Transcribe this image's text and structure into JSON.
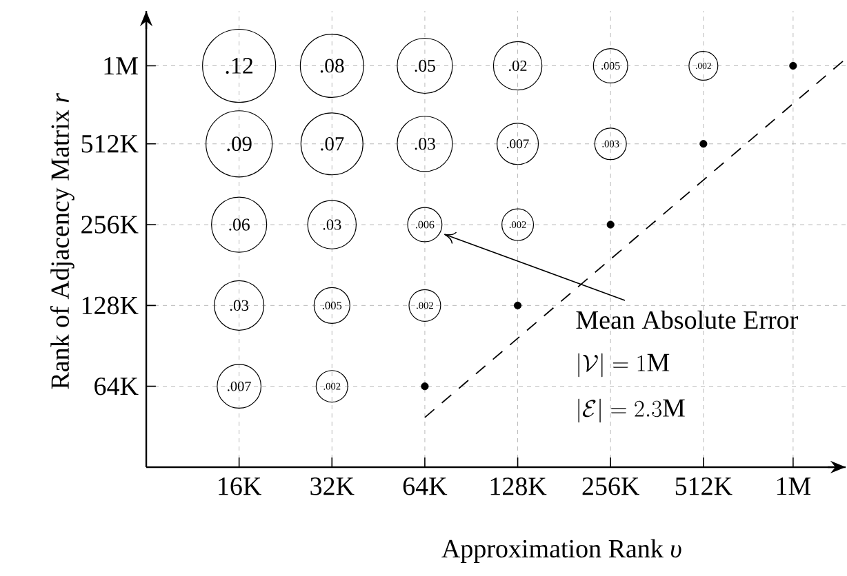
{
  "chart_data": {
    "type": "bubble",
    "xlabel": "Approximation Rank *υ*",
    "ylabel": "Rank of Adjacency Matrix *r*",
    "log": "xy",
    "grid": true,
    "xlim": [
      8000,
      1480000
    ],
    "ylim": [
      32000,
      1600000
    ],
    "xticks": [
      {
        "value": 16000,
        "label": "16K"
      },
      {
        "value": 32000,
        "label": "32K"
      },
      {
        "value": 64000,
        "label": "64K"
      },
      {
        "value": 128000,
        "label": "128K"
      },
      {
        "value": 256000,
        "label": "256K"
      },
      {
        "value": 512000,
        "label": "512K"
      },
      {
        "value": 1000000,
        "label": "1M"
      }
    ],
    "yticks": [
      {
        "value": 64000,
        "label": "64K"
      },
      {
        "value": 128000,
        "label": "128K"
      },
      {
        "value": 256000,
        "label": "256K"
      },
      {
        "value": 512000,
        "label": "512K"
      },
      {
        "value": 1000000,
        "label": "1M"
      }
    ],
    "series": [
      {
        "color": "#000000",
        "x": [
          16000,
          32000,
          64000,
          128000,
          256000,
          512000,
          16000,
          32000,
          64000,
          128000,
          256000,
          16000,
          32000,
          64000,
          128000,
          16000,
          32000,
          64000,
          16000,
          32000
        ],
        "values": [
          1000000,
          1000000,
          1000000,
          1000000,
          1000000,
          1000000,
          512000,
          512000,
          512000,
          512000,
          512000,
          256000,
          256000,
          256000,
          256000,
          128000,
          128000,
          128000,
          64000,
          64000
        ],
        "sizes": [
          1,
          0.75,
          0.57,
          0.44,
          0.22,
          0.156,
          0.82,
          0.72,
          0.57,
          0.32,
          0.187,
          0.57,
          0.44,
          0.22,
          0.187,
          0.46,
          0.24,
          0.187,
          0.36,
          0.187
        ]
      },
      {
        "type": "scatter",
        "color": "#000000",
        "marker": "circle",
        "x": [
          1000000,
          512000,
          256000,
          128000,
          64000
        ],
        "values": [
          1000000,
          512000,
          256000,
          128000,
          64000
        ]
      },
      {
        "type": "line",
        "color": "#000000",
        "line_style": "dashed",
        "x": [
          64000,
          1450000
        ],
        "values": [
          49000,
          1040000
        ]
      }
    ],
    "annotations": [
      "Mean Absolute Error",
      "\\left|\\mathcal{V}\\right| = 1\\mathrm{M}",
      "\\left|\\mathcal{E}\\right| = 2.3\\mathrm{M}",
      {
        "text": ".12",
        "x": 16000,
        "y": 1000000
      },
      {
        "text": ".08",
        "x": 32000,
        "y": 1000000
      },
      {
        "text": ".05",
        "x": 64000,
        "y": 1000000
      },
      {
        "text": ".02",
        "x": 128000,
        "y": 1000000
      },
      {
        "text": ".005",
        "x": 256000,
        "y": 1000000
      },
      {
        "text": ".002",
        "x": 512000,
        "y": 1000000
      },
      {
        "text": ".09",
        "x": 16000,
        "y": 512000
      },
      {
        "text": ".07",
        "x": 32000,
        "y": 512000
      },
      {
        "text": ".03",
        "x": 64000,
        "y": 512000
      },
      {
        "text": ".007",
        "x": 128000,
        "y": 512000
      },
      {
        "text": ".003",
        "x": 256000,
        "y": 512000
      },
      {
        "text": ".06",
        "x": 16000,
        "y": 256000
      },
      {
        "text": ".03",
        "x": 32000,
        "y": 256000
      },
      {
        "text": ".006",
        "x": 64000,
        "y": 256000
      },
      {
        "text": ".002",
        "x": 128000,
        "y": 256000
      },
      {
        "text": ".03",
        "x": 16000,
        "y": 128000
      },
      {
        "text": ".005",
        "x": 32000,
        "y": 128000
      },
      {
        "text": ".002",
        "x": 64000,
        "y": 128000
      },
      {
        "text": ".007",
        "x": 16000,
        "y": 64000
      },
      {
        "text": ".002",
        "x": 32000,
        "y": 64000
      }
    ]
  }
}
